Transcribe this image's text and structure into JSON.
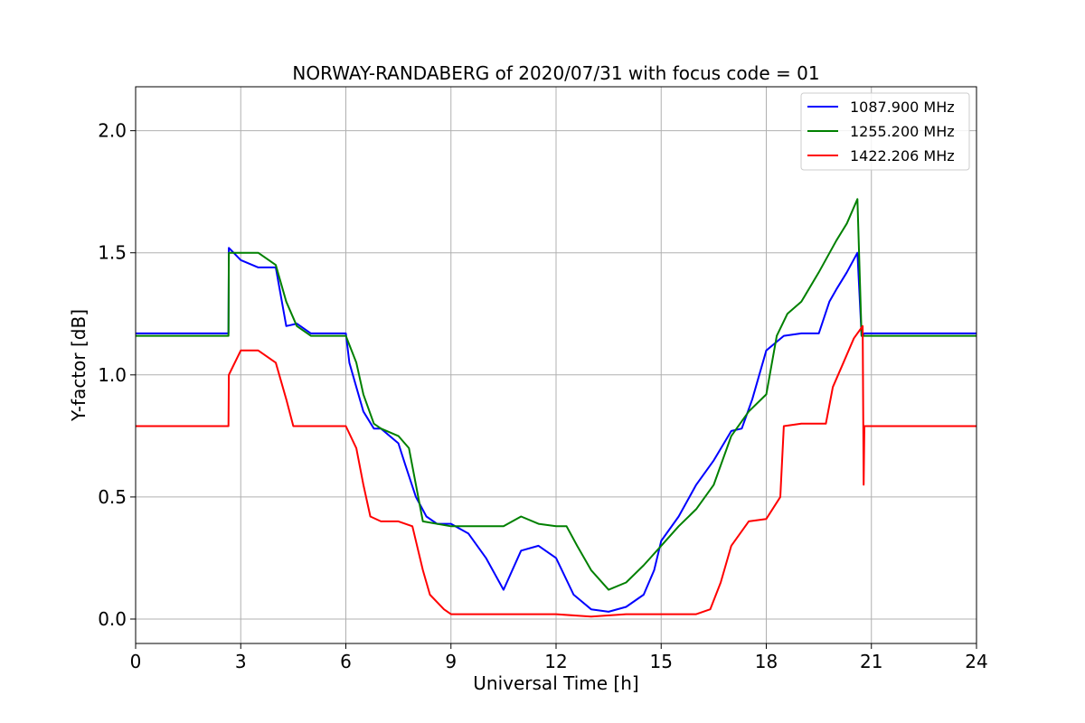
{
  "chart_data": {
    "type": "line",
    "title": "NORWAY-RANDABERG of 2020/07/31 with focus code = 01",
    "xlabel": "Universal Time [h]",
    "ylabel": "Y-factor [dB]",
    "xlim": [
      0,
      24
    ],
    "ylim": [
      -0.1,
      2.18
    ],
    "xticks": [
      0,
      3,
      6,
      9,
      12,
      15,
      18,
      21,
      24
    ],
    "xtick_labels": [
      "0",
      "3",
      "6",
      "9",
      "12",
      "15",
      "18",
      "21",
      "24"
    ],
    "yticks": [
      0.0,
      0.5,
      1.0,
      1.5,
      2.0
    ],
    "ytick_labels": [
      "0.0",
      "0.5",
      "1.0",
      "1.5",
      "2.0"
    ],
    "grid": true,
    "legend_position": "top-right",
    "series": [
      {
        "name": "1087.900 MHz",
        "color": "#0000ff",
        "x": [
          0,
          2.65,
          2.66,
          3.0,
          3.5,
          4.0,
          4.3,
          4.6,
          5.0,
          6.0,
          6.1,
          6.3,
          6.5,
          6.8,
          7.0,
          7.5,
          7.7,
          8.0,
          8.3,
          8.6,
          9.0,
          9.5,
          10.0,
          10.5,
          11.0,
          11.5,
          12.0,
          12.5,
          13.0,
          13.5,
          14.0,
          14.5,
          14.8,
          15.0,
          15.5,
          16.0,
          16.5,
          17.0,
          17.3,
          17.6,
          18.0,
          18.5,
          19.0,
          19.5,
          19.8,
          20.0,
          20.3,
          20.6,
          20.72,
          20.8,
          21.0,
          22.0,
          23.0,
          24.0
        ],
        "y": [
          1.17,
          1.17,
          1.52,
          1.47,
          1.44,
          1.44,
          1.2,
          1.21,
          1.17,
          1.17,
          1.05,
          0.95,
          0.85,
          0.78,
          0.78,
          0.72,
          0.63,
          0.5,
          0.42,
          0.39,
          0.39,
          0.35,
          0.25,
          0.12,
          0.28,
          0.3,
          0.25,
          0.1,
          0.04,
          0.03,
          0.05,
          0.1,
          0.2,
          0.32,
          0.42,
          0.55,
          0.65,
          0.77,
          0.78,
          0.9,
          1.1,
          1.16,
          1.17,
          1.17,
          1.3,
          1.35,
          1.42,
          1.5,
          1.16,
          1.17,
          1.17,
          1.17,
          1.17,
          1.17
        ]
      },
      {
        "name": "1255.200 MHz",
        "color": "#008000",
        "x": [
          0,
          2.65,
          2.66,
          3.0,
          3.5,
          4.0,
          4.3,
          4.6,
          5.0,
          6.0,
          6.3,
          6.5,
          6.8,
          7.0,
          7.5,
          7.8,
          8.0,
          8.2,
          9.0,
          10.0,
          10.5,
          11.0,
          11.5,
          12.0,
          12.3,
          12.6,
          13.0,
          13.5,
          14.0,
          14.5,
          15.0,
          15.5,
          16.0,
          16.5,
          17.0,
          17.5,
          18.0,
          18.3,
          18.6,
          19.0,
          19.5,
          20.0,
          20.3,
          20.6,
          20.72,
          20.8,
          21.0,
          22.0,
          23.0,
          24.0
        ],
        "y": [
          1.16,
          1.16,
          1.5,
          1.5,
          1.5,
          1.45,
          1.3,
          1.2,
          1.16,
          1.16,
          1.05,
          0.92,
          0.8,
          0.78,
          0.75,
          0.7,
          0.55,
          0.4,
          0.38,
          0.38,
          0.38,
          0.42,
          0.39,
          0.38,
          0.38,
          0.3,
          0.2,
          0.12,
          0.15,
          0.22,
          0.3,
          0.38,
          0.45,
          0.55,
          0.75,
          0.85,
          0.92,
          1.16,
          1.25,
          1.3,
          1.42,
          1.55,
          1.62,
          1.72,
          1.16,
          1.16,
          1.16,
          1.16,
          1.16,
          1.16
        ]
      },
      {
        "name": "1422.206 MHz",
        "color": "#ff0000",
        "x": [
          0,
          2.65,
          2.66,
          3.0,
          3.5,
          4.0,
          4.3,
          4.5,
          5.0,
          6.0,
          6.3,
          6.5,
          6.7,
          7.0,
          7.5,
          7.9,
          8.2,
          8.4,
          8.8,
          9.0,
          10.0,
          11.0,
          12.0,
          13.0,
          14.0,
          15.0,
          16.0,
          16.4,
          16.7,
          17.0,
          17.5,
          18.0,
          18.4,
          18.5,
          19.0,
          19.7,
          19.9,
          20.2,
          20.5,
          20.75,
          20.78,
          20.8,
          21.0,
          22.0,
          23.0,
          24.0
        ],
        "y": [
          0.79,
          0.79,
          1.0,
          1.1,
          1.1,
          1.05,
          0.9,
          0.79,
          0.79,
          0.79,
          0.7,
          0.55,
          0.42,
          0.4,
          0.4,
          0.38,
          0.2,
          0.1,
          0.04,
          0.02,
          0.02,
          0.02,
          0.02,
          0.01,
          0.02,
          0.02,
          0.02,
          0.04,
          0.15,
          0.3,
          0.4,
          0.41,
          0.5,
          0.79,
          0.8,
          0.8,
          0.95,
          1.05,
          1.15,
          1.2,
          0.55,
          0.79,
          0.79,
          0.79,
          0.79,
          0.79
        ]
      }
    ]
  }
}
